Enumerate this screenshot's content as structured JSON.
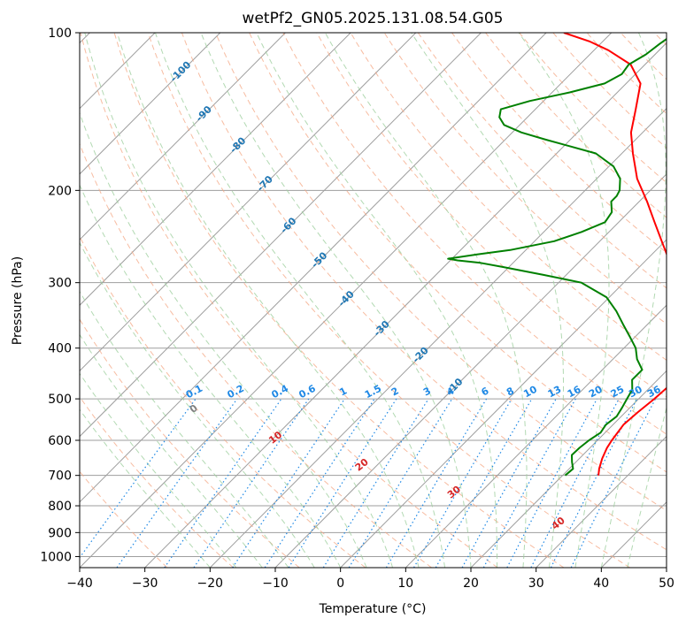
{
  "chart_data": {
    "type": "line",
    "title": "wetPf2_GN05.2025.131.08.54.G05",
    "xlabel": "Temperature (°C)",
    "ylabel": "Pressure (hPa)",
    "xlim": [
      -40,
      50
    ],
    "ylim": [
      1050,
      100
    ],
    "y_scale": "log",
    "x_ticks": [
      -40,
      -30,
      -20,
      -10,
      0,
      10,
      20,
      30,
      40,
      50
    ],
    "x_tick_labels": [
      "−40",
      "−30",
      "−20",
      "−10",
      "0",
      "10",
      "20",
      "30",
      "40",
      "50"
    ],
    "y_ticks": [
      100,
      200,
      300,
      400,
      500,
      600,
      700,
      800,
      900,
      1000
    ],
    "y_tick_labels": [
      "100",
      "200",
      "300",
      "400",
      "500",
      "600",
      "700",
      "800",
      "900",
      "1000"
    ],
    "grid": true,
    "colors": {
      "temperature": "#ff0000",
      "dewpoint": "#008000",
      "mixing_ratio": "#1e88e5",
      "dry_adiabat": "#f4a582",
      "moist_adiabat": "#9fd09f",
      "isotherm": "#9e9e9e",
      "isobar": "#9e9e9e",
      "dry_adiabat_label": "#d62728",
      "moist_label": "#1f77b4"
    },
    "series": [
      {
        "name": "Temperature",
        "p": [
          700,
          680,
          650,
          620,
          600,
          560,
          530,
          500,
          470,
          450,
          430,
          410,
          390,
          370,
          350,
          330,
          310,
          290,
          270,
          250,
          230,
          210,
          190,
          170,
          155,
          140,
          125,
          115,
          108,
          104,
          100
        ],
        "t": [
          25.5,
          24.6,
          23.5,
          22.6,
          22.2,
          21.6,
          21.9,
          22.4,
          22.7,
          22.7,
          22.1,
          21.2,
          19.8,
          17.9,
          15.5,
          12.8,
          10.2,
          6.8,
          3.2,
          -0.5,
          -4.5,
          -8.8,
          -13.8,
          -18.3,
          -21.8,
          -24.6,
          -27.8,
          -32.2,
          -37.8,
          -41.9,
          -47.3
        ]
      },
      {
        "name": "Dewpoint",
        "p": [
          700,
          680,
          660,
          640,
          620,
          600,
          580,
          560,
          540,
          520,
          500,
          480,
          460,
          440,
          420,
          400,
          380,
          360,
          340,
          320,
          300,
          290,
          280,
          275,
          272,
          270,
          265,
          260,
          250,
          240,
          230,
          220,
          210,
          205,
          200,
          190,
          180,
          170,
          165,
          160,
          155,
          150,
          145,
          140,
          135,
          130,
          125,
          120,
          115,
          110,
          105,
          100
        ],
        "td": [
          20.4,
          20.6,
          19.4,
          18.3,
          18.4,
          18.7,
          19.3,
          18.9,
          19.3,
          18.8,
          18.2,
          17.6,
          16.1,
          16.1,
          13.7,
          11.8,
          9.1,
          6.2,
          3.2,
          -0.4,
          -6.5,
          -13.5,
          -21.0,
          -25.0,
          -28.9,
          -30.6,
          -26.8,
          -22.4,
          -17.0,
          -14.2,
          -12.1,
          -12.6,
          -14.3,
          -14.3,
          -14.7,
          -16.4,
          -19.3,
          -24.0,
          -28.8,
          -33.8,
          -38.6,
          -42.4,
          -44.3,
          -45.3,
          -42.1,
          -37.3,
          -33.3,
          -32.1,
          -32.5,
          -31.4,
          -30.9,
          -30.2
        ]
      }
    ],
    "mixing_ratio_labels": [
      "0.1",
      "0.2",
      "0.4",
      "0.6",
      "1",
      "1.5",
      "2",
      "3",
      "4",
      "6",
      "8",
      "10",
      "13",
      "16",
      "20",
      "25",
      "30",
      "36"
    ],
    "dry_adiabat_labels": [
      "0",
      "10",
      "20",
      "30",
      "40"
    ],
    "moist_adiabat_labels": [
      "-100",
      "-90",
      "-80",
      "-70",
      "-60",
      "-50",
      "-40",
      "-30",
      "-20",
      "-10"
    ]
  }
}
